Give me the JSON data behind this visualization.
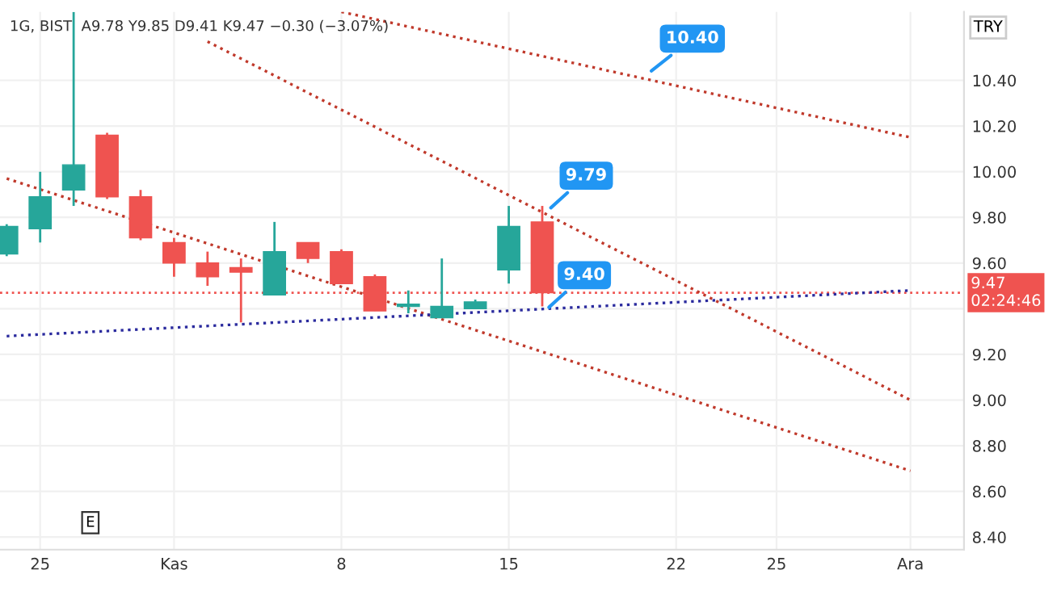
{
  "chart_data": {
    "type": "candlestick",
    "title": "1G, BIST  A9.78 Y9.85 D9.41 K9.47 −0.30 (−3.07%)",
    "ylabel": "TRY",
    "categories": [
      null,
      "25",
      null,
      null,
      null,
      "Kas",
      null,
      null,
      null,
      null,
      "8",
      null,
      null,
      null,
      null,
      "15",
      null,
      null,
      null,
      null,
      "22",
      null,
      null,
      "25",
      null,
      null,
      null,
      "Ara"
    ],
    "ohlc": [
      [
        9.64,
        9.77,
        9.63,
        9.76
      ],
      [
        9.75,
        10.0,
        9.69,
        9.89
      ],
      [
        9.92,
        10.7,
        9.85,
        10.03
      ],
      [
        10.16,
        10.17,
        9.88,
        9.89
      ],
      [
        9.89,
        9.92,
        9.7,
        9.71
      ],
      [
        9.69,
        9.71,
        9.54,
        9.6
      ],
      [
        9.6,
        9.65,
        9.5,
        9.54
      ],
      [
        9.58,
        9.62,
        9.34,
        9.56
      ],
      [
        9.46,
        9.78,
        9.46,
        9.65
      ],
      [
        9.69,
        9.69,
        9.6,
        9.62
      ],
      [
        9.65,
        9.66,
        9.51,
        9.51
      ],
      [
        9.54,
        9.55,
        9.39,
        9.39
      ],
      [
        9.41,
        9.48,
        9.38,
        9.42
      ],
      [
        9.36,
        9.62,
        9.36,
        9.41
      ],
      [
        9.4,
        9.44,
        9.4,
        9.43
      ],
      [
        9.57,
        9.85,
        9.51,
        9.76
      ],
      [
        9.78,
        9.85,
        9.41,
        9.47
      ],
      null,
      null,
      null,
      null,
      null,
      null,
      null,
      null,
      null,
      null,
      null
    ],
    "series": [
      {
        "type": "line",
        "color": "#c0392b",
        "values": [
          null,
          null,
          null,
          null,
          null,
          null,
          null,
          null,
          null,
          null,
          10.7,
          null,
          null,
          null,
          null,
          null,
          null,
          null,
          null,
          null,
          null,
          null,
          null,
          null,
          null,
          null,
          null,
          10.15
        ]
      },
      {
        "type": "line",
        "color": "#c0392b",
        "values": [
          null,
          null,
          null,
          null,
          null,
          null,
          10.57,
          null,
          null,
          null,
          null,
          null,
          null,
          null,
          null,
          null,
          null,
          null,
          null,
          null,
          null,
          null,
          null,
          null,
          null,
          null,
          null,
          9.0
        ]
      },
      {
        "type": "line",
        "color": "#c0392b",
        "values": [
          9.97,
          null,
          null,
          null,
          null,
          null,
          null,
          null,
          null,
          null,
          null,
          null,
          null,
          null,
          null,
          null,
          null,
          null,
          null,
          null,
          null,
          null,
          null,
          null,
          null,
          null,
          null,
          8.69
        ]
      },
      {
        "type": "line",
        "color": "#2b2b9e",
        "values": [
          9.28,
          null,
          null,
          null,
          null,
          null,
          null,
          null,
          null,
          null,
          null,
          null,
          null,
          null,
          null,
          null,
          null,
          null,
          null,
          null,
          null,
          null,
          null,
          null,
          null,
          null,
          null,
          9.48
        ]
      }
    ],
    "line_style": "dotted",
    "ref_lines": [
      {
        "axis": "y",
        "value": 9.47,
        "label": "9.47\n02:24:46",
        "color": "#ef5350",
        "line_style": "dotted"
      }
    ],
    "annotations": [
      "10.40",
      "9.79",
      "9.40",
      "E"
    ],
    "ylim": [
      8.345,
      10.7
    ],
    "yticks": [
      {
        "value": 8.4,
        "label": "8.40"
      },
      {
        "value": 8.6,
        "label": "8.60"
      },
      {
        "value": 8.8,
        "label": "8.80"
      },
      {
        "value": 9.0,
        "label": "9.00"
      },
      {
        "value": 9.2,
        "label": "9.20"
      },
      {
        "value": 9.4,
        "label": null
      },
      {
        "value": 9.6,
        "label": "9.60"
      },
      {
        "value": 9.8,
        "label": "9.80"
      },
      {
        "value": 10.0,
        "label": "10.00"
      },
      {
        "value": 10.2,
        "label": "10.20"
      },
      {
        "value": 10.4,
        "label": "10.40"
      }
    ],
    "grid": true
  }
}
